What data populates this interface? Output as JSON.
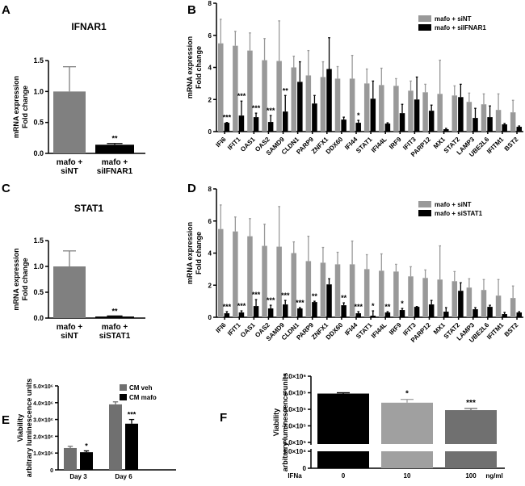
{
  "chart_data": [
    {
      "panel": "A",
      "type": "bar",
      "title": "IFNAR1",
      "ylabel": [
        "mRNA expression",
        "Fold change"
      ],
      "ylim": [
        0,
        1.5
      ],
      "yticks": [
        "0.0",
        "0.5",
        "1.0",
        "1.5"
      ],
      "yticks_values": [
        0,
        0.5,
        1,
        1.5
      ],
      "categories": [
        [
          "mafo +",
          "siNT"
        ],
        [
          "mafo +",
          "siIFNAR1"
        ]
      ],
      "values": [
        1.0,
        0.14
      ],
      "errors": [
        0.4,
        0.02
      ],
      "signif": [
        "",
        "**"
      ],
      "colors": [
        "#808080",
        "#000000"
      ]
    },
    {
      "panel": "B",
      "type": "bar",
      "ylabel": [
        "mRNA expression",
        "Fold change"
      ],
      "ylim": [
        0,
        8
      ],
      "yticks": [
        "0",
        "2",
        "4",
        "6",
        "8"
      ],
      "yticks_values": [
        0,
        2,
        4,
        6,
        8
      ],
      "categories": [
        "IFI6",
        "IFIT1",
        "OAS1",
        "OAS2",
        "SAMD9",
        "CLDN1",
        "PARP9",
        "ZNFX1",
        "DDX60",
        "IFI44",
        "STAT1",
        "IFI44L",
        "IRF9",
        "IFIT3",
        "PARP12",
        "MX1",
        "STAT2",
        "LAMP3",
        "UBE2L6",
        "IFITM1",
        "BST2"
      ],
      "legend_position": "top-right",
      "series": [
        {
          "name": "mafo + siNT",
          "color": "#999999",
          "values": [
            5.5,
            5.35,
            5.05,
            4.45,
            4.4,
            4.0,
            3.5,
            3.4,
            3.3,
            3.3,
            3.0,
            2.9,
            2.85,
            2.55,
            2.45,
            2.35,
            2.25,
            1.85,
            1.7,
            1.35,
            1.2
          ],
          "errors": [
            1.5,
            0.9,
            1.1,
            1.35,
            2.5,
            0.7,
            1.55,
            0.95,
            0.75,
            1.45,
            0.9,
            1.05,
            0.45,
            0.6,
            0.5,
            2.1,
            0.6,
            0.55,
            0.65,
            1.0,
            0.75
          ]
        },
        {
          "name": "mafo + siIFNAR1",
          "color": "#000000",
          "values": [
            0.55,
            1.0,
            0.9,
            0.6,
            1.25,
            3.1,
            1.75,
            3.9,
            0.75,
            0.55,
            2.05,
            0.5,
            1.15,
            2.0,
            1.3,
            0.15,
            2.15,
            0.85,
            0.9,
            0.45,
            0.3
          ],
          "errors": [
            0.02,
            0.9,
            0.25,
            0.4,
            1.0,
            1.25,
            0.5,
            1.95,
            0.15,
            0.15,
            1.1,
            0.05,
            0.55,
            1.4,
            0.35,
            0.05,
            0.8,
            0.6,
            0.7,
            0.05,
            0.05
          ],
          "signif": [
            "***",
            "***",
            "***",
            "***",
            "**",
            "",
            "",
            "",
            "",
            "*",
            "",
            "",
            "",
            "",
            "",
            "",
            "",
            "",
            "",
            "",
            ""
          ]
        }
      ]
    },
    {
      "panel": "C",
      "type": "bar",
      "title": "STAT1",
      "ylabel": [
        "mRNA expression",
        "Fold change"
      ],
      "ylim": [
        0,
        1.5
      ],
      "yticks": [
        "0.0",
        "0.5",
        "1.0",
        "1.5"
      ],
      "yticks_values": [
        0,
        0.5,
        1,
        1.5
      ],
      "categories": [
        [
          "mafo +",
          "siNT"
        ],
        [
          "mafo +",
          "siSTAT1"
        ]
      ],
      "values": [
        1.0,
        0.03
      ],
      "errors": [
        0.3,
        0.01
      ],
      "signif": [
        "",
        "**"
      ],
      "colors": [
        "#808080",
        "#000000"
      ]
    },
    {
      "panel": "D",
      "type": "bar",
      "ylabel": [
        "mRNA expression",
        "Fold change"
      ],
      "ylim": [
        0,
        8
      ],
      "yticks": [
        "0",
        "2",
        "4",
        "6",
        "8"
      ],
      "yticks_values": [
        0,
        2,
        4,
        6,
        8
      ],
      "categories": [
        "IFI6",
        "IFIT1",
        "OAS1",
        "OAS2",
        "SAMD9",
        "CLDN1",
        "PARP9",
        "ZNFX1",
        "DDX60",
        "IFI44",
        "STAT1",
        "IFI44L",
        "IRF9",
        "IFIT3",
        "PARP12",
        "MX1",
        "STAT2",
        "LAMP3",
        "UBE2L6",
        "IFITM1",
        "BST2"
      ],
      "legend_position": "top-right",
      "series": [
        {
          "name": "mafo + siNT",
          "color": "#999999",
          "values": [
            5.5,
            5.35,
            5.05,
            4.45,
            4.4,
            4.0,
            3.5,
            3.4,
            3.3,
            3.3,
            3.0,
            2.9,
            2.85,
            2.55,
            2.45,
            2.35,
            2.25,
            1.85,
            1.7,
            1.35,
            1.2
          ],
          "errors": [
            1.5,
            0.9,
            1.1,
            1.35,
            2.5,
            0.7,
            1.55,
            0.95,
            0.75,
            1.45,
            0.9,
            1.05,
            0.45,
            0.6,
            0.5,
            2.1,
            0.6,
            0.55,
            0.65,
            1.0,
            0.75
          ]
        },
        {
          "name": "mafo + siSTAT1",
          "color": "#000000",
          "values": [
            0.25,
            0.3,
            0.7,
            0.55,
            0.8,
            0.55,
            0.95,
            2.05,
            0.75,
            0.25,
            0.1,
            0.3,
            0.45,
            0.65,
            0.8,
            0.35,
            1.65,
            0.5,
            0.65,
            0.2,
            0.3
          ],
          "errors": [
            0.1,
            0.1,
            0.4,
            0.2,
            0.25,
            0.05,
            0.05,
            0.35,
            0.15,
            0.1,
            0.3,
            0.05,
            0.1,
            0.02,
            0.25,
            0.25,
            0.5,
            0.1,
            0.1,
            0.1,
            0.05
          ],
          "signif": [
            "***",
            "***",
            "***",
            "***",
            "***",
            "***",
            "**",
            "",
            "**",
            "***",
            "*",
            "**",
            "*",
            "",
            "",
            "",
            "",
            "",
            "",
            "",
            ""
          ]
        }
      ]
    },
    {
      "panel": "E",
      "type": "bar",
      "ylabel": [
        "Viability",
        "arbitrary luminescence units"
      ],
      "ylim": [
        0,
        5000000
      ],
      "yticks": [
        "0",
        "1.0×10⁶",
        "2.0×10⁶",
        "3.0×10⁶",
        "4.0×10⁶",
        "5.0×10⁶"
      ],
      "yticks_values": [
        0,
        1000000,
        2000000,
        3000000,
        4000000,
        5000000
      ],
      "categories": [
        "Day 3",
        "Day 6"
      ],
      "legend_position": "top-right",
      "series": [
        {
          "name": "CM veh",
          "color": "#707070",
          "values": [
            1300000,
            3900000
          ],
          "errors": [
            100000,
            150000
          ]
        },
        {
          "name": "CM mafo",
          "color": "#000000",
          "values": [
            1050000,
            2750000
          ],
          "errors": [
            80000,
            250000
          ],
          "signif": [
            "*",
            "***"
          ]
        }
      ]
    },
    {
      "panel": "F",
      "type": "bar",
      "ylabel": [
        "Viability",
        "arbitrary luminescence units"
      ],
      "axis_break": true,
      "yticks": [
        "0",
        "1.0×10⁴",
        "6.0×10⁵",
        "7.0×10⁵",
        "8.0×10⁵",
        "9.0×10⁵",
        "1.0×10⁶"
      ],
      "yticks_values": [
        0,
        10000,
        600000,
        700000,
        800000,
        900000,
        1000000
      ],
      "xlabel": "IFNa",
      "xunit": "ng/ml",
      "categories": [
        "0",
        "10",
        "100"
      ],
      "values": [
        895000,
        840000,
        795000
      ],
      "errors": [
        5000,
        20000,
        10000
      ],
      "signif": [
        "",
        "*",
        "***"
      ],
      "colors": [
        "#000000",
        "#a0a0a0",
        "#707070"
      ]
    }
  ]
}
